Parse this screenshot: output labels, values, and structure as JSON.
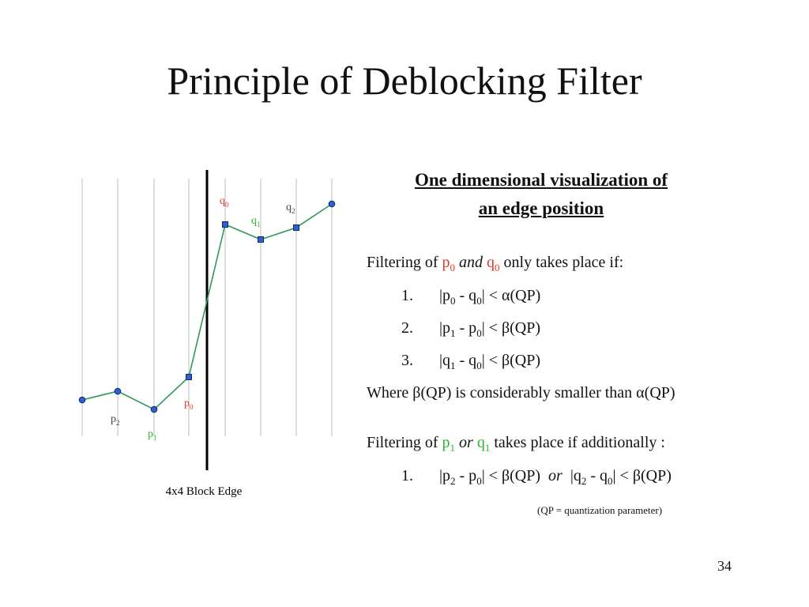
{
  "slide": {
    "title": "Principle of Deblocking Filter",
    "number": "34"
  },
  "diagram": {
    "edge_caption": "4x4 Block Edge",
    "labels": {
      "p0": {
        "base": "p",
        "sub": "0",
        "color": "#e23b2b"
      },
      "p1": {
        "base": "p",
        "sub": "1",
        "color": "#2bb52f"
      },
      "p2": {
        "base": "p",
        "sub": "2",
        "color": "#444444"
      },
      "q0": {
        "base": "q",
        "sub": "0",
        "color": "#e23b2b"
      },
      "q1": {
        "base": "q",
        "sub": "1",
        "color": "#2bb52f"
      },
      "q2": {
        "base": "q",
        "sub": "2",
        "color": "#444444"
      }
    },
    "line_color": "#2e9a5a",
    "marker_color": "#2f5fd0"
  },
  "panel": {
    "heading_line1": "One dimensional visualization of",
    "heading_line2": "an edge position",
    "filter_intro": "Filtering of p0 and q0 only takes place if:",
    "conditions": [
      {
        "num": "1.",
        "text": "|p0 - q0| < α(QP)"
      },
      {
        "num": "2.",
        "text": "|p1 - p0| < β(QP)"
      },
      {
        "num": "3.",
        "text": "|q1 - q0| < β(QP)"
      }
    ],
    "where": "Where  β(QP) is considerably smaller than α(QP)",
    "additional_intro": "Filtering of p1 or q1 takes place if additionally :",
    "additional_condition": {
      "num": "1.",
      "text": "|p2 - p0| < β(QP)  or  |q2 - q0| < β(QP)"
    },
    "note": "(QP = quantization parameter)"
  }
}
